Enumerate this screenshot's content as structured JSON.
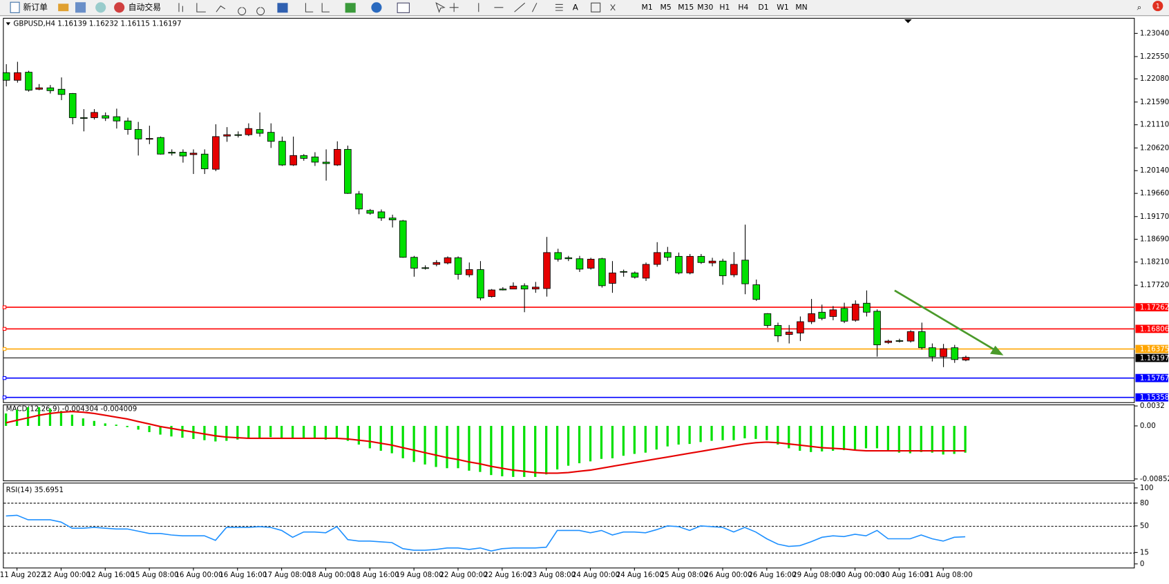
{
  "toolbar": {
    "new_order": "新订单",
    "auto_trading": "自动交易",
    "timeframes": [
      "M1",
      "M5",
      "M15",
      "M30",
      "H1",
      "H4",
      "D1",
      "W1",
      "MN"
    ],
    "alerts": "1"
  },
  "chart_data": {
    "type": "candlestick",
    "title": "GBPUSD,H4",
    "up_color": "#e60000",
    "down_color": "#00e000",
    "candles": [
      [
        1.2221,
        1.2239,
        1.2192,
        1.2205
      ],
      [
        1.2205,
        1.2244,
        1.22,
        1.2221
      ],
      [
        1.2222,
        1.2225,
        1.2181,
        1.2184
      ],
      [
        1.2186,
        1.2197,
        1.2184,
        1.2189
      ],
      [
        1.2189,
        1.2195,
        1.2177,
        1.2183
      ],
      [
        1.2186,
        1.2211,
        1.2163,
        1.2175
      ],
      [
        1.2177,
        1.2178,
        1.2112,
        1.2126
      ],
      [
        1.2126,
        1.2144,
        1.2097,
        1.2125
      ],
      [
        1.2126,
        1.2144,
        1.2122,
        1.2137
      ],
      [
        1.213,
        1.2137,
        1.2119,
        1.2125
      ],
      [
        1.2128,
        1.2145,
        1.2103,
        1.2119
      ],
      [
        1.2119,
        1.2126,
        1.209,
        1.2101
      ],
      [
        1.2101,
        1.2117,
        1.2046,
        1.2081
      ],
      [
        1.2081,
        1.2109,
        1.207,
        1.2082
      ],
      [
        1.2084,
        1.2086,
        1.2048,
        1.2049
      ],
      [
        1.2053,
        1.2059,
        1.2046,
        1.2051
      ],
      [
        1.2053,
        1.2059,
        1.2031,
        1.2045
      ],
      [
        1.2048,
        1.2059,
        1.2007,
        1.2051
      ],
      [
        1.2049,
        1.2059,
        1.2007,
        1.2018
      ],
      [
        1.2017,
        1.2112,
        1.2013,
        1.2086
      ],
      [
        1.2087,
        1.2106,
        1.2075,
        1.209
      ],
      [
        1.209,
        1.2097,
        1.2084,
        1.2089
      ],
      [
        1.209,
        1.2114,
        1.2087,
        1.2103
      ],
      [
        1.2101,
        1.2137,
        1.2086,
        1.2093
      ],
      [
        1.2095,
        1.2114,
        1.2062,
        1.2076
      ],
      [
        1.2076,
        1.2086,
        1.2024,
        1.2026
      ],
      [
        1.2026,
        1.2086,
        1.2024,
        1.2046
      ],
      [
        1.2046,
        1.2049,
        1.2035,
        1.204
      ],
      [
        1.2043,
        1.2053,
        1.2024,
        1.2032
      ],
      [
        1.2032,
        1.2059,
        1.1993,
        1.2029
      ],
      [
        1.2026,
        1.2076,
        1.2024,
        1.2059
      ],
      [
        1.2059,
        1.2067,
        1.1965,
        1.1966
      ],
      [
        1.1965,
        1.1971,
        1.1922,
        1.1933
      ],
      [
        1.193,
        1.1933,
        1.1921,
        1.1924
      ],
      [
        1.1927,
        1.1932,
        1.1908,
        1.1914
      ],
      [
        1.1914,
        1.1921,
        1.1894,
        1.191
      ],
      [
        1.1908,
        1.191,
        1.183,
        1.1831
      ],
      [
        1.1831,
        1.1834,
        1.179,
        1.1808
      ],
      [
        1.1809,
        1.1814,
        1.1805,
        1.1808
      ],
      [
        1.1816,
        1.1825,
        1.1812,
        1.182
      ],
      [
        1.1819,
        1.1833,
        1.1816,
        1.183
      ],
      [
        1.183,
        1.1833,
        1.1784,
        1.1795
      ],
      [
        1.1794,
        1.182,
        1.1789,
        1.1805
      ],
      [
        1.1805,
        1.1823,
        1.174,
        1.1745
      ],
      [
        1.1748,
        1.1764,
        1.1746,
        1.1762
      ],
      [
        1.1764,
        1.1768,
        1.1761,
        1.1762
      ],
      [
        1.1764,
        1.1778,
        1.1764,
        1.177
      ],
      [
        1.1771,
        1.1776,
        1.1715,
        1.1764
      ],
      [
        1.1764,
        1.1779,
        1.1756,
        1.1768
      ],
      [
        1.1765,
        1.1874,
        1.1748,
        1.1841
      ],
      [
        1.1841,
        1.1849,
        1.1822,
        1.1827
      ],
      [
        1.183,
        1.1834,
        1.1823,
        1.1828
      ],
      [
        1.1828,
        1.1834,
        1.18,
        1.1806
      ],
      [
        1.1808,
        1.183,
        1.1805,
        1.1827
      ],
      [
        1.1828,
        1.183,
        1.1767,
        1.1771
      ],
      [
        1.1776,
        1.1823,
        1.1756,
        1.1798
      ],
      [
        1.1801,
        1.1805,
        1.179,
        1.18
      ],
      [
        1.1798,
        1.1801,
        1.1786,
        1.1789
      ],
      [
        1.1787,
        1.182,
        1.1781,
        1.1816
      ],
      [
        1.1816,
        1.1863,
        1.1811,
        1.1841
      ],
      [
        1.1841,
        1.1853,
        1.1823,
        1.1831
      ],
      [
        1.1833,
        1.1841,
        1.1795,
        1.1798
      ],
      [
        1.1798,
        1.1838,
        1.1795,
        1.1833
      ],
      [
        1.1833,
        1.1838,
        1.1817,
        1.182
      ],
      [
        1.1819,
        1.183,
        1.1812,
        1.1823
      ],
      [
        1.1823,
        1.1828,
        1.1773,
        1.1792
      ],
      [
        1.1794,
        1.1842,
        1.1789,
        1.1816
      ],
      [
        1.1825,
        1.19,
        1.1753,
        1.1775
      ],
      [
        1.1773,
        1.1784,
        1.1739,
        1.1742
      ],
      [
        1.1712,
        1.1713,
        1.1682,
        1.1687
      ],
      [
        1.1687,
        1.1693,
        1.1652,
        1.1665
      ],
      [
        1.1668,
        1.1688,
        1.1649,
        1.1673
      ],
      [
        1.1671,
        1.1706,
        1.1654,
        1.1695
      ],
      [
        1.1695,
        1.1743,
        1.169,
        1.1712
      ],
      [
        1.1715,
        1.1731,
        1.1698,
        1.1702
      ],
      [
        1.1706,
        1.1728,
        1.1698,
        1.172
      ],
      [
        1.1723,
        1.1735,
        1.1692,
        1.1696
      ],
      [
        1.1698,
        1.174,
        1.1695,
        1.1732
      ],
      [
        1.1734,
        1.1761,
        1.1706,
        1.1715
      ],
      [
        1.1717,
        1.1721,
        1.1621,
        1.1646
      ],
      [
        1.1651,
        1.1657,
        1.1648,
        1.1654
      ],
      [
        1.1655,
        1.1659,
        1.1651,
        1.1654
      ],
      [
        1.1654,
        1.1677,
        1.1651,
        1.1674
      ],
      [
        1.1674,
        1.1693,
        1.1636,
        1.164
      ],
      [
        1.164,
        1.1649,
        1.1611,
        1.1621
      ],
      [
        1.1621,
        1.1648,
        1.1599,
        1.1638
      ],
      [
        1.164,
        1.1646,
        1.1608,
        1.1615
      ],
      [
        1.16139,
        1.16232,
        1.16115,
        1.16197
      ]
    ],
    "ylim": [
      1.15248,
      1.23352
    ],
    "yticks": [
      {
        "value": 1.2304,
        "label": "1.23040"
      },
      {
        "value": 1.2255,
        "label": "1.22550"
      },
      {
        "value": 1.2208,
        "label": "1.22080"
      },
      {
        "value": 1.2159,
        "label": "1.21590"
      },
      {
        "value": 1.2111,
        "label": "1.21110"
      },
      {
        "value": 1.2062,
        "label": "1.20620"
      },
      {
        "value": 1.2014,
        "label": "1.20140"
      },
      {
        "value": 1.1966,
        "label": "1.19660"
      },
      {
        "value": 1.1917,
        "label": "1.19170"
      },
      {
        "value": 1.1869,
        "label": "1.18690"
      },
      {
        "value": 1.1821,
        "label": "1.18210"
      },
      {
        "value": 1.1772,
        "label": "1.17720"
      }
    ],
    "levels": [
      {
        "value": 1.17262,
        "color": "#ff0000"
      },
      {
        "value": 1.16806,
        "color": "#ff0000"
      },
      {
        "value": 1.16375,
        "color": "#ffa500"
      },
      {
        "value": 1.15767,
        "color": "#0000ff"
      },
      {
        "value": 1.15358,
        "color": "#0000ff"
      }
    ],
    "time_labels": [
      "11 Aug 2022",
      "12 Aug 00:00",
      "12 Aug 16:00",
      "15 Aug 08:00",
      "16 Aug 00:00",
      "16 Aug 16:00",
      "17 Aug 08:00",
      "18 Aug 00:00",
      "18 Aug 16:00",
      "19 Aug 08:00",
      "22 Aug 00:00",
      "22 Aug 16:00",
      "23 Aug 08:00",
      "24 Aug 00:00",
      "24 Aug 16:00",
      "25 Aug 08:00",
      "26 Aug 00:00",
      "26 Aug 16:00",
      "29 Aug 08:00",
      "30 Aug 00:00",
      "30 Aug 16:00",
      "31 Aug 08:00"
    ]
  },
  "macd": {
    "title": "MACD(12,26,9)",
    "hist_color": "#00e000",
    "signal_color": "#e60000",
    "histogram": [
      0.002,
      0.0026,
      0.003,
      0.003,
      0.0028,
      0.0024,
      0.0018,
      0.0012,
      0.0008,
      0.0004,
      0.0002,
      -0.0002,
      -0.0006,
      -0.001,
      -0.0014,
      -0.0017,
      -0.0019,
      -0.0021,
      -0.0023,
      -0.0025,
      -0.0024,
      -0.0022,
      -0.002,
      -0.0019,
      -0.0018,
      -0.0019,
      -0.002,
      -0.002,
      -0.0021,
      -0.0022,
      -0.002,
      -0.0024,
      -0.003,
      -0.0036,
      -0.004,
      -0.0044,
      -0.0052,
      -0.0058,
      -0.0062,
      -0.0066,
      -0.0068,
      -0.0068,
      -0.0072,
      -0.0074,
      -0.0079,
      -0.0081,
      -0.0082,
      -0.0082,
      -0.0082,
      -0.0078,
      -0.007,
      -0.0064,
      -0.006,
      -0.0057,
      -0.0053,
      -0.0052,
      -0.0048,
      -0.0045,
      -0.0043,
      -0.0038,
      -0.0033,
      -0.003,
      -0.0029,
      -0.0026,
      -0.0024,
      -0.0023,
      -0.0023,
      -0.002,
      -0.0021,
      -0.0023,
      -0.003,
      -0.0036,
      -0.004,
      -0.0042,
      -0.0041,
      -0.004,
      -0.0039,
      -0.0038,
      -0.0036,
      -0.0036,
      -0.0041,
      -0.0043,
      -0.0044,
      -0.0042,
      -0.0043,
      -0.0046,
      -0.0045,
      -0.004304
    ],
    "signal": [
      0.0005,
      0.0009,
      0.0013,
      0.0017,
      0.002,
      0.0022,
      0.0023,
      0.0022,
      0.002,
      0.0017,
      0.0014,
      0.0011,
      0.0007,
      0.0003,
      -0.0001,
      -0.0004,
      -0.0007,
      -0.001,
      -0.0013,
      -0.0016,
      -0.0018,
      -0.0019,
      -0.002,
      -0.002,
      -0.002,
      -0.002,
      -0.002,
      -0.002,
      -0.002,
      -0.002,
      -0.002,
      -0.0021,
      -0.0023,
      -0.0025,
      -0.0028,
      -0.0031,
      -0.0035,
      -0.0039,
      -0.0043,
      -0.0047,
      -0.0051,
      -0.0054,
      -0.0058,
      -0.0061,
      -0.0065,
      -0.0068,
      -0.0071,
      -0.0073,
      -0.0075,
      -0.0076,
      -0.0076,
      -0.0075,
      -0.0073,
      -0.0071,
      -0.0068,
      -0.0065,
      -0.0062,
      -0.0059,
      -0.0056,
      -0.0053,
      -0.005,
      -0.0047,
      -0.0044,
      -0.0041,
      -0.0038,
      -0.0035,
      -0.0032,
      -0.0029,
      -0.0027,
      -0.0026,
      -0.0027,
      -0.0029,
      -0.0031,
      -0.0033,
      -0.0035,
      -0.0036,
      -0.0037,
      -0.0039,
      -0.004,
      -0.004,
      -0.004,
      -0.004,
      -0.004,
      -0.004,
      -0.004,
      -0.004,
      -0.004,
      -0.004009
    ],
    "ylim": [
      -0.008529,
      0.0032
    ],
    "yticks": [
      0.0032,
      {
        "value": 0,
        "label": "0.00"
      },
      -0.008529
    ]
  },
  "rsi": {
    "title": "RSI(14)",
    "color": "#1e90ff",
    "values": [
      63,
      64,
      58,
      58,
      58,
      55,
      47,
      47,
      48,
      47,
      46,
      46,
      43,
      40,
      40,
      38,
      37,
      37,
      37,
      31,
      48,
      48,
      48,
      49,
      48,
      44,
      35,
      42,
      42,
      41,
      49,
      32,
      30,
      30,
      29,
      28,
      20,
      18,
      18,
      19,
      21,
      21,
      19,
      21,
      17,
      20,
      21,
      21,
      21,
      22,
      44,
      44,
      44,
      41,
      44,
      38,
      42,
      42,
      41,
      45,
      50,
      49,
      44,
      50,
      49,
      48,
      42,
      48,
      42,
      33,
      26,
      23,
      24,
      29,
      35,
      37,
      36,
      39,
      37,
      44,
      33,
      33,
      33,
      38,
      33,
      30,
      35,
      35.6951
    ],
    "ylim": [
      0,
      100
    ],
    "yticks": [
      100,
      80,
      50,
      15,
      0
    ],
    "levels": [
      80,
      50,
      15
    ]
  }
}
